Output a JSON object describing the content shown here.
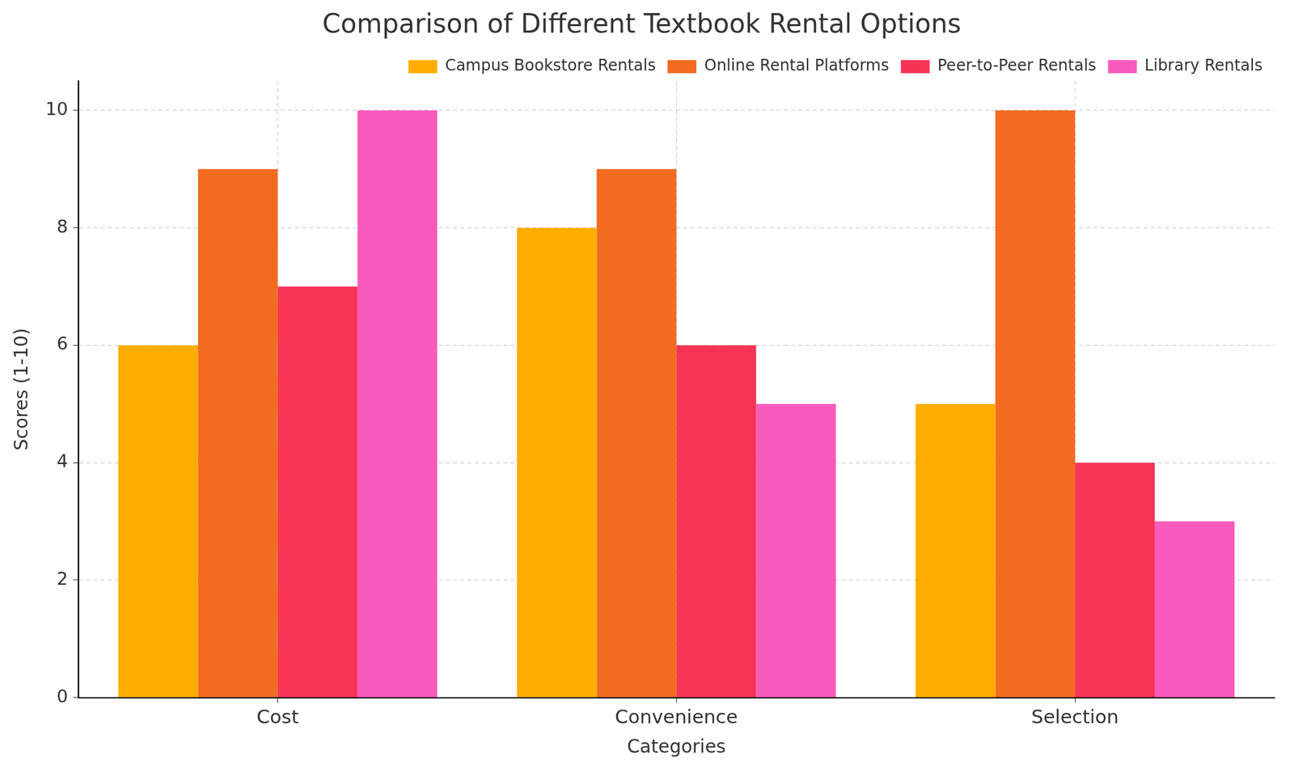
{
  "chart_data": {
    "type": "bar",
    "title": "Comparison of Different Textbook Rental Options",
    "x_label": "Categories",
    "y_label": "Scores (1-10)",
    "categories": [
      "Cost",
      "Convenience",
      "Selection"
    ],
    "series": [
      {
        "name": "Campus Bookstore Rentals",
        "color": "#ffae00",
        "values": [
          6,
          8,
          5
        ]
      },
      {
        "name": "Online Rental Platforms",
        "color": "#f26b21",
        "values": [
          9,
          9,
          10
        ]
      },
      {
        "name": "Peer-to-Peer Rentals",
        "color": "#f73356",
        "values": [
          7,
          6,
          4
        ]
      },
      {
        "name": "Library Rentals",
        "color": "#f95bbc",
        "values": [
          10,
          5,
          3
        ]
      }
    ],
    "ylim": [
      0,
      10.5
    ],
    "yticks": [
      0,
      2,
      4,
      6,
      8,
      10
    ],
    "grid": true,
    "legend": "upper right"
  }
}
